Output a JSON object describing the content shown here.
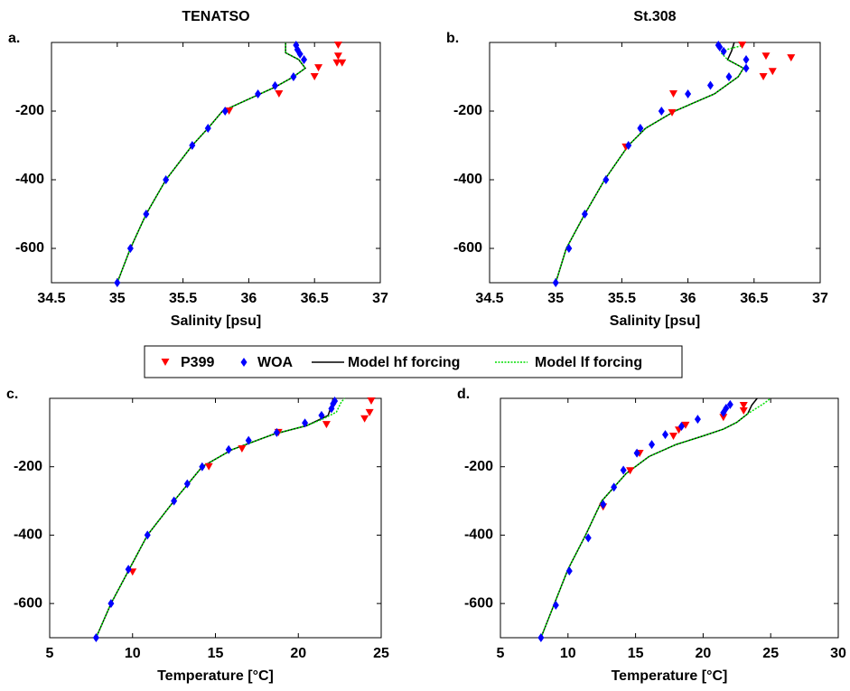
{
  "legend": [
    {
      "name": "P399",
      "color": "#ff0000",
      "style": "triangle"
    },
    {
      "name": "WOA",
      "color": "#0000ff",
      "style": "diamond"
    },
    {
      "name": "Model hf forcing",
      "color": "#000000",
      "style": "solid"
    },
    {
      "name": "Model lf forcing",
      "color": "#00dd00",
      "style": "dotted"
    }
  ],
  "chart_data": [
    {
      "type": "profile",
      "letter": "a.",
      "title": "TENATSO",
      "xlabel": "Salinity [psu]",
      "xlim": [
        34.5,
        37
      ],
      "ylim": [
        -700,
        0
      ],
      "xticks": [
        34.5,
        35,
        35.5,
        36,
        36.5,
        37
      ],
      "yticks": [
        -600,
        -400,
        -200
      ],
      "series": [
        {
          "color": "#ff0000",
          "style": "triangle",
          "x": [
            36.68,
            36.68,
            36.71,
            36.67,
            36.53,
            36.5,
            36.23,
            35.85
          ],
          "values": [
            -8,
            -40,
            -60,
            -60,
            -74,
            -100,
            -150,
            -200
          ]
        },
        {
          "color": "#0000ff",
          "style": "diamond",
          "x": [
            35,
            35.1,
            35.22,
            35.37,
            35.57,
            35.69,
            35.82,
            36.07,
            36.2,
            36.34,
            36.42,
            36.39,
            36.37,
            36.36
          ],
          "values": [
            -700,
            -600,
            -500,
            -400,
            -300,
            -250,
            -200,
            -150,
            -126,
            -100,
            -50,
            -34,
            -21,
            -8
          ]
        },
        {
          "color": "#000000",
          "style": "solid",
          "x": [
            35,
            35.1,
            35.22,
            35.37,
            35.57,
            35.69,
            35.8,
            36.0,
            36.2,
            36.34,
            36.43,
            36.38,
            36.28,
            36.28
          ],
          "values": [
            -700,
            -600,
            -500,
            -400,
            -300,
            -250,
            -200,
            -165,
            -130,
            -100,
            -75,
            -50,
            -30,
            0
          ]
        },
        {
          "color": "#00dd00",
          "style": "dotted",
          "x": [
            35,
            35.1,
            35.22,
            35.37,
            35.57,
            35.69,
            35.8,
            36.0,
            36.2,
            36.34,
            36.43,
            36.38,
            36.28,
            36.28
          ],
          "values": [
            -700,
            -600,
            -500,
            -400,
            -300,
            -250,
            -200,
            -165,
            -130,
            -100,
            -75,
            -50,
            -30,
            0
          ]
        }
      ]
    },
    {
      "type": "profile",
      "letter": "b.",
      "title": "St.308",
      "xlabel": "Salinity [psu]",
      "xlim": [
        34.5,
        37
      ],
      "ylim": [
        -700,
        0
      ],
      "xticks": [
        34.5,
        35,
        35.5,
        36,
        36.5,
        37
      ],
      "yticks": [
        -600,
        -400,
        -200
      ],
      "series": [
        {
          "color": "#ff0000",
          "style": "triangle",
          "x": [
            36.41,
            36.59,
            36.64,
            36.57,
            36.78,
            35.89,
            35.88,
            35.53
          ],
          "values": [
            -8,
            -40,
            -85,
            -100,
            -45,
            -150,
            -205,
            -305
          ]
        },
        {
          "color": "#0000ff",
          "style": "diamond",
          "x": [
            35,
            35.1,
            35.22,
            35.38,
            35.55,
            35.64,
            35.8,
            36.0,
            36.17,
            36.31,
            36.44,
            36.44,
            36.27,
            36.24,
            36.23
          ],
          "values": [
            -700,
            -600,
            -500,
            -400,
            -300,
            -250,
            -200,
            -150,
            -125,
            -100,
            -75,
            -50,
            -26,
            -13,
            -8
          ]
        },
        {
          "color": "#000000",
          "style": "solid",
          "x": [
            35,
            35.08,
            35.22,
            35.37,
            35.55,
            35.68,
            35.9,
            36.2,
            36.38,
            36.42,
            36.3,
            36.33,
            36.35
          ],
          "values": [
            -700,
            -600,
            -500,
            -400,
            -300,
            -250,
            -200,
            -150,
            -100,
            -75,
            -50,
            -25,
            0
          ]
        },
        {
          "color": "#00dd00",
          "style": "dotted",
          "x": [
            35,
            35.08,
            35.22,
            35.37,
            35.55,
            35.68,
            35.9,
            36.2,
            36.38,
            36.42,
            36.3,
            36.25,
            36.3,
            36.4,
            36.4
          ],
          "values": [
            -700,
            -600,
            -500,
            -400,
            -300,
            -250,
            -200,
            -150,
            -100,
            -75,
            -50,
            -30,
            -20,
            -10,
            0
          ]
        }
      ]
    },
    {
      "type": "profile",
      "letter": "c.",
      "xlabel": "Temperature [°C]",
      "xlim": [
        5,
        25
      ],
      "ylim": [
        -700,
        0
      ],
      "xticks": [
        5,
        10,
        15,
        20,
        25
      ],
      "yticks": [
        -600,
        -400,
        -200
      ],
      "series": [
        {
          "color": "#ff0000",
          "style": "triangle",
          "x": [
            24.4,
            24.3,
            24.0,
            21.7,
            18.8,
            16.6,
            14.6,
            10.0
          ],
          "values": [
            -8,
            -42,
            -60,
            -77,
            -100,
            -148,
            -200,
            -508
          ]
        },
        {
          "color": "#0000ff",
          "style": "diamond",
          "x": [
            7.8,
            8.7,
            9.75,
            10.9,
            12.5,
            13.3,
            14.2,
            15.8,
            17.0,
            18.7,
            20.4,
            21.4,
            22,
            22.1,
            22.2
          ],
          "values": [
            -700,
            -600,
            -500,
            -400,
            -300,
            -250,
            -200,
            -150,
            -123,
            -100,
            -72,
            -50,
            -30,
            -16,
            -8
          ]
        },
        {
          "color": "#000000",
          "style": "solid",
          "x": [
            7.8,
            8.7,
            9.8,
            10.9,
            12.5,
            14.2,
            16,
            18.5,
            20.5,
            21.8,
            22.0,
            22.1
          ],
          "values": [
            -700,
            -600,
            -500,
            -400,
            -300,
            -200,
            -150,
            -105,
            -80,
            -50,
            -20,
            0
          ]
        },
        {
          "color": "#00dd00",
          "style": "dotted",
          "x": [
            7.8,
            8.7,
            9.8,
            10.9,
            12.5,
            14.2,
            16,
            18.5,
            20.5,
            21.5,
            22.3,
            22.6,
            22.8
          ],
          "values": [
            -700,
            -600,
            -500,
            -400,
            -300,
            -200,
            -150,
            -105,
            -80,
            -60,
            -40,
            -10,
            0
          ]
        }
      ]
    },
    {
      "type": "profile",
      "letter": "d.",
      "xlabel": "Temperature [°C]",
      "xlim": [
        5,
        30
      ],
      "ylim": [
        -700,
        0
      ],
      "xticks": [
        5,
        10,
        15,
        20,
        25,
        30
      ],
      "yticks": [
        -600,
        -400,
        -200
      ],
      "series": [
        {
          "color": "#ff0000",
          "style": "triangle",
          "x": [
            23.0,
            23.0,
            21.5,
            18.7,
            18.2,
            17.8,
            15.3,
            14.6,
            12.6
          ],
          "values": [
            -21,
            -37,
            -56,
            -79,
            -93,
            -111,
            -161,
            -212,
            -318
          ]
        },
        {
          "color": "#0000ff",
          "style": "diamond",
          "x": [
            8,
            9.1,
            10.1,
            11.5,
            12.6,
            13.4,
            14.1,
            15.1,
            16.2,
            17.2,
            18.4,
            19.6,
            21.5,
            21.7,
            22.0
          ],
          "values": [
            -700,
            -605,
            -505,
            -408,
            -310,
            -260,
            -210,
            -160,
            -135,
            -106,
            -82,
            -61,
            -42,
            -29,
            -18
          ]
        },
        {
          "color": "#000000",
          "style": "solid",
          "x": [
            8,
            9,
            10,
            11.3,
            12.5,
            14.3,
            16,
            18,
            20,
            21.5,
            22.5,
            23.3,
            23.6,
            24
          ],
          "values": [
            -700,
            -600,
            -500,
            -400,
            -300,
            -220,
            -170,
            -135,
            -110,
            -90,
            -70,
            -45,
            -20,
            0
          ]
        },
        {
          "color": "#00dd00",
          "style": "dotted",
          "x": [
            8,
            9,
            10,
            11.3,
            12.5,
            14.3,
            16,
            18,
            20,
            21.5,
            22.5,
            23.3,
            24.5,
            25
          ],
          "values": [
            -700,
            -600,
            -500,
            -400,
            -300,
            -220,
            -170,
            -135,
            -110,
            -90,
            -70,
            -45,
            -15,
            0
          ]
        }
      ]
    }
  ]
}
